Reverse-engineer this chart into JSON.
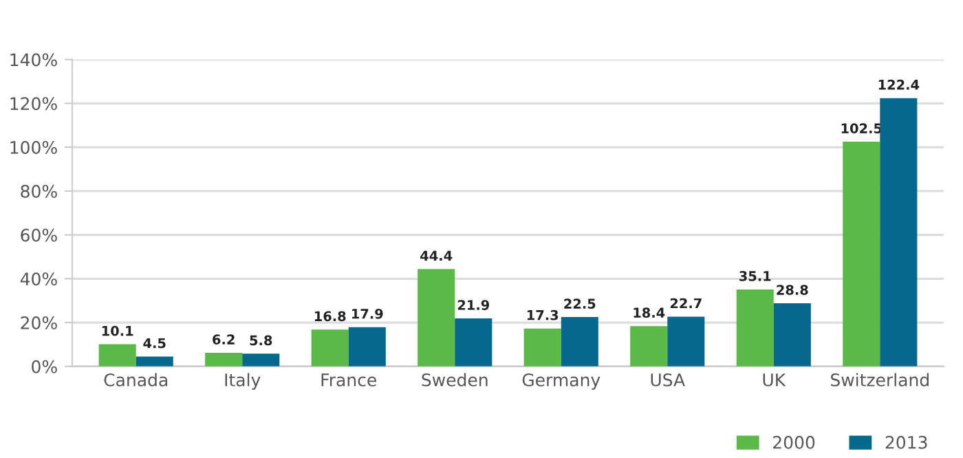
{
  "chart_data": {
    "type": "bar",
    "categories": [
      "Canada",
      "Italy",
      "France",
      "Sweden",
      "Germany",
      "USA",
      "UK",
      "Switzerland"
    ],
    "series": [
      {
        "name": "2000",
        "color": "#5bb947",
        "values": [
          10.1,
          6.2,
          16.8,
          44.4,
          17.3,
          18.4,
          35.1,
          102.5
        ]
      },
      {
        "name": "2013",
        "color": "#06688c",
        "values": [
          4.5,
          5.8,
          17.9,
          21.9,
          22.5,
          22.7,
          28.8,
          122.4
        ]
      }
    ],
    "ylim": [
      0,
      140
    ],
    "yticks": [
      {
        "value": 0,
        "label": "0%"
      },
      {
        "value": 20,
        "label": "20%"
      },
      {
        "value": 40,
        "label": "40%"
      },
      {
        "value": 60,
        "label": "60%"
      },
      {
        "value": 80,
        "label": "80%"
      },
      {
        "value": 100,
        "label": "100%"
      },
      {
        "value": 120,
        "label": "120%"
      },
      {
        "value": 140,
        "label": "140%"
      }
    ],
    "grid": "y",
    "data_labels": true,
    "legend": "bottom right"
  }
}
